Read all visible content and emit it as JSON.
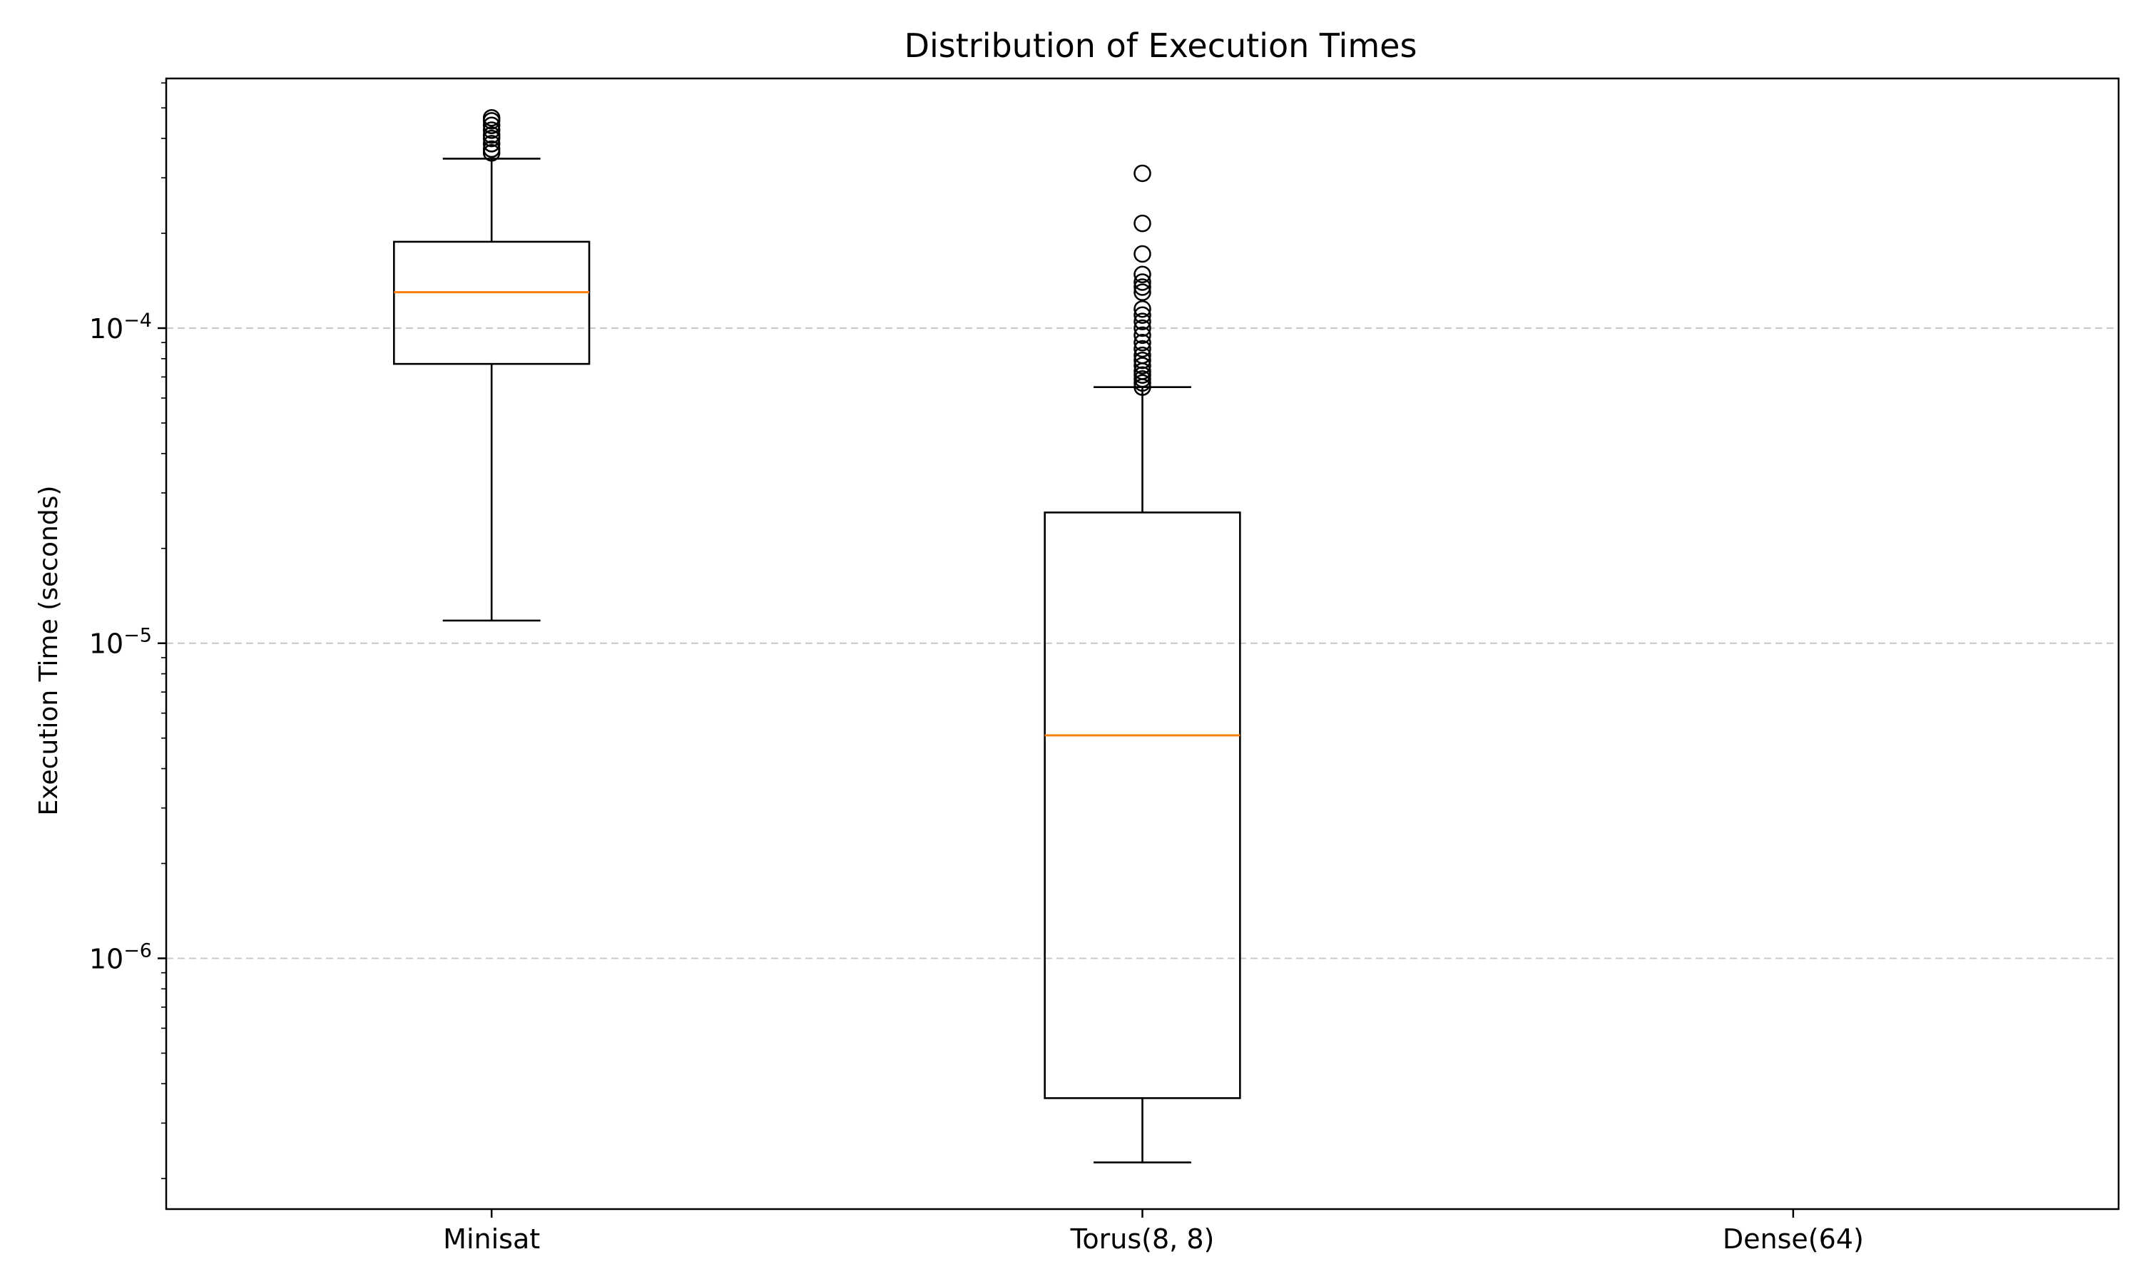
{
  "chart_data": {
    "type": "box",
    "title": "Distribution of Execution Times",
    "xlabel": "",
    "ylabel": "Execution Time (seconds)",
    "yscale": "log",
    "ylim": [
      1.6e-07,
      0.00062
    ],
    "y_major_ticks": [
      {
        "value": 1e-06,
        "base": "10",
        "exp": "−6"
      },
      {
        "value": 1e-05,
        "base": "10",
        "exp": "−5"
      },
      {
        "value": 0.0001,
        "base": "10",
        "exp": "−4"
      }
    ],
    "grid": {
      "axis": "y",
      "style": "dashed",
      "color": "#c8c8c8"
    },
    "categories": [
      "Minisat",
      "Torus(8, 8)",
      "Dense(64)"
    ],
    "boxes": [
      {
        "name": "Minisat",
        "whisker_low": 1.18e-05,
        "q1": 7.7e-05,
        "median": 0.00013,
        "q3": 0.000188,
        "whisker_high": 0.000345,
        "outliers": [
          0.00036,
          0.00037,
          0.000385,
          0.0004,
          0.00041,
          0.000425,
          0.00044,
          0.000455,
          0.000465
        ]
      },
      {
        "name": "Torus(8, 8)",
        "whisker_low": 2.25e-07,
        "q1": 3.6e-07,
        "median": 5.1e-06,
        "q3": 2.6e-05,
        "whisker_high": 6.5e-05,
        "outliers": [
          6.5e-05,
          6.7e-05,
          6.9e-05,
          7.1e-05,
          7.3e-05,
          7.6e-05,
          7.9e-05,
          8.2e-05,
          8.6e-05,
          9e-05,
          9.5e-05,
          0.0001,
          0.000105,
          0.00011,
          0.000115,
          0.00013,
          0.000135,
          0.00014,
          0.000148,
          0.000172,
          0.000215,
          0.00031
        ]
      },
      {
        "name": "Dense(64)",
        "empty": true
      }
    ],
    "colors": {
      "box": "#000000",
      "median": "#ff7f0e",
      "grid": "#c8c8c8",
      "background": "#ffffff"
    }
  }
}
